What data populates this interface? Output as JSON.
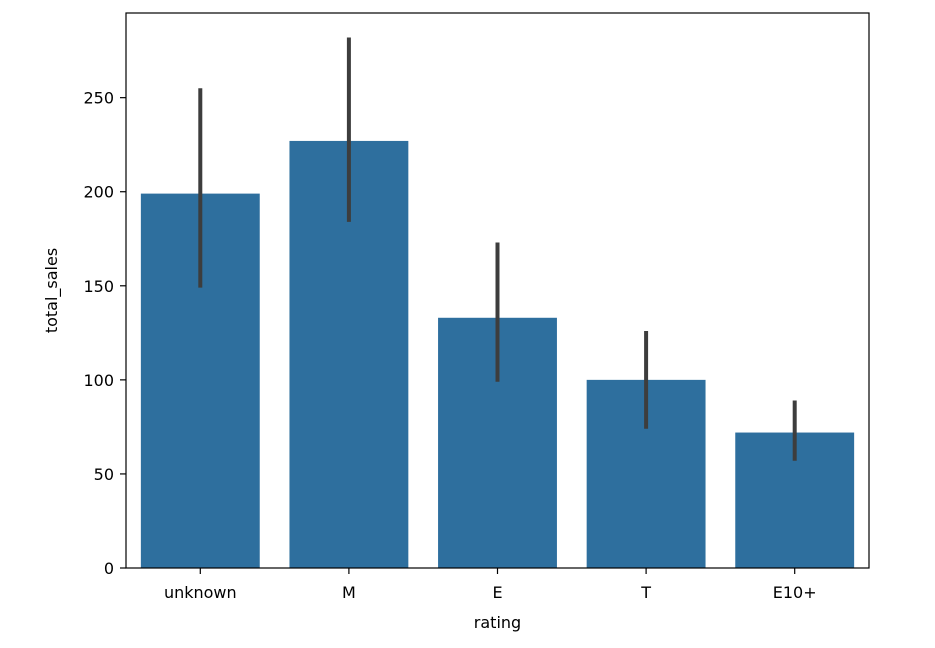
{
  "chart_data": {
    "type": "bar",
    "categories": [
      "unknown",
      "M",
      "E",
      "T",
      "E10+"
    ],
    "values": [
      199,
      227,
      133,
      100,
      72
    ],
    "error_bars": [
      {
        "low": 149,
        "high": 255
      },
      {
        "low": 184,
        "high": 282
      },
      {
        "low": 99,
        "high": 173
      },
      {
        "low": 74,
        "high": 126
      },
      {
        "low": 57,
        "high": 89
      }
    ],
    "xlabel": "rating",
    "ylabel": "total_sales",
    "ylim": [
      0,
      295
    ],
    "yticks": [
      0,
      50,
      100,
      150,
      200,
      250
    ],
    "grid": false,
    "colors": {
      "bar": "#2e6f9e",
      "error_bar": "#3d3d3d",
      "axis": "#000000"
    }
  }
}
